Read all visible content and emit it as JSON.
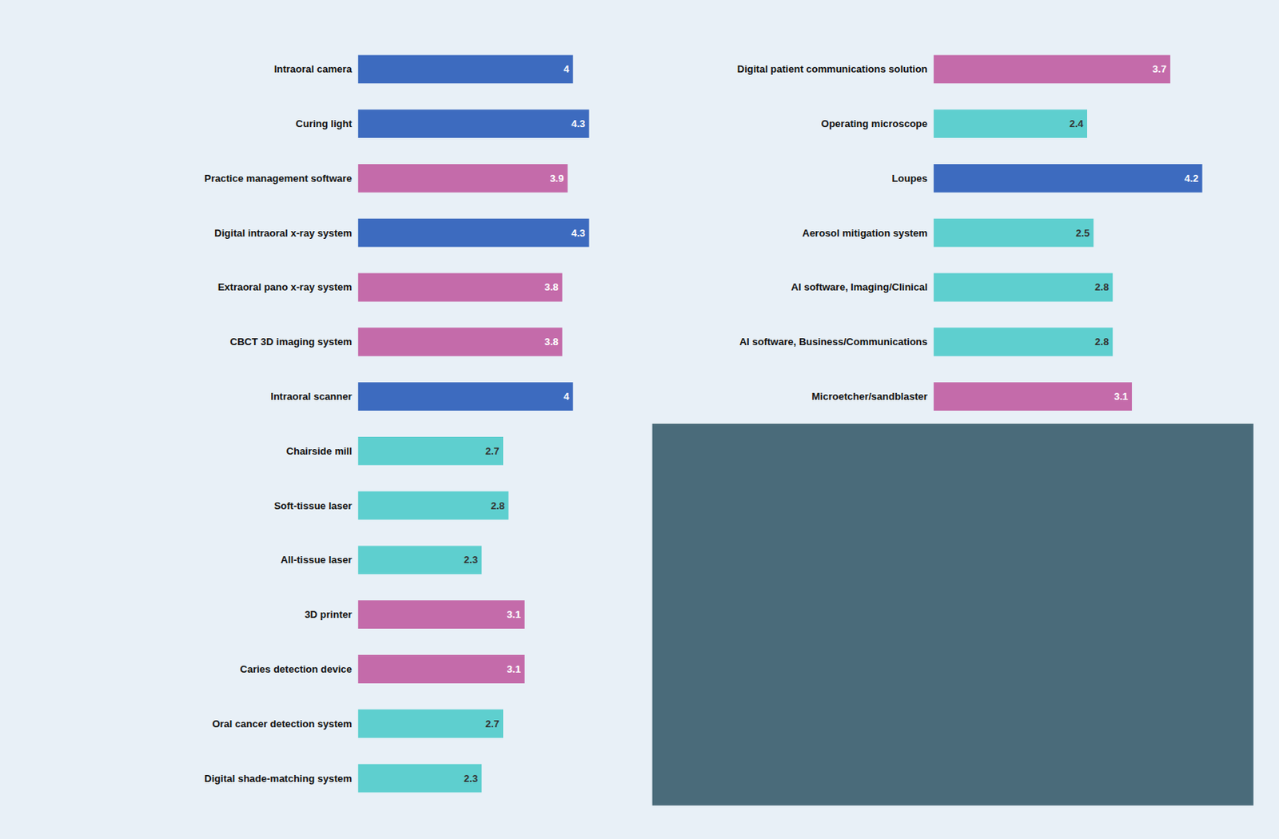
{
  "chart_data": [
    {
      "type": "bar",
      "orientation": "horizontal",
      "categories": [
        "Intraoral camera",
        "Curing light",
        "Practice management software",
        "Digital intraoral x-ray system",
        "Extraoral pano x-ray system",
        "CBCT 3D imaging system",
        "Intraoral scanner",
        "Chairside mill",
        "Soft-tissue laser",
        "All-tissue laser",
        "3D printer",
        "Caries detection device",
        "Oral cancer detection system",
        "Digital shade-matching system"
      ],
      "values": [
        4,
        4.3,
        3.9,
        4.3,
        3.8,
        3.8,
        4,
        2.7,
        2.8,
        2.3,
        3.1,
        3.1,
        2.7,
        2.3
      ],
      "colors": [
        "#3d6bbf",
        "#3d6bbf",
        "#c46baa",
        "#3d6bbf",
        "#c46baa",
        "#c46baa",
        "#3d6bbf",
        "#5ecfcf",
        "#5ecfcf",
        "#5ecfcf",
        "#c46baa",
        "#c46baa",
        "#5ecfcf",
        "#5ecfcf"
      ],
      "xlim": [
        0,
        5
      ],
      "data_labels": true,
      "tick_labels": "y",
      "grid": false
    },
    {
      "type": "bar",
      "orientation": "horizontal",
      "categories": [
        "Digital patient communications solution",
        "Operating microscope",
        "Loupes",
        "Aerosol mitigation system",
        "AI software, Imaging/Clinical",
        "AI software, Business/Communications",
        "Microetcher/sandblaster"
      ],
      "values": [
        3.7,
        2.4,
        4.2,
        2.5,
        2.8,
        2.8,
        3.1
      ],
      "colors": [
        "#c46baa",
        "#5ecfcf",
        "#3d6bbf",
        "#5ecfcf",
        "#5ecfcf",
        "#5ecfcf",
        "#c46baa"
      ],
      "xlim": [
        0,
        5
      ],
      "data_labels": true,
      "tick_labels": "y",
      "grid": false
    }
  ]
}
